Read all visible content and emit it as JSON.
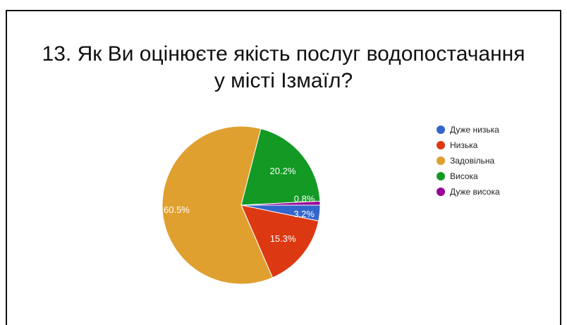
{
  "chart_data": {
    "type": "pie",
    "title": "13. Як Ви оцінюєте якість послуг водопостачання\nу місті Ізмаїл?",
    "categories": [
      "Дуже низька",
      "Низька",
      "Задовільна",
      "Висока",
      "Дуже висока"
    ],
    "values": [
      3.2,
      15.3,
      60.5,
      20.2,
      0.8
    ],
    "labels": [
      "3.2%",
      "15.3%",
      "60.5%",
      "20.2%",
      "0.8%"
    ],
    "colors": [
      "#3366cc",
      "#dc3912",
      "#e0a030",
      "#129a24",
      "#990099"
    ],
    "legend_position": "right"
  }
}
